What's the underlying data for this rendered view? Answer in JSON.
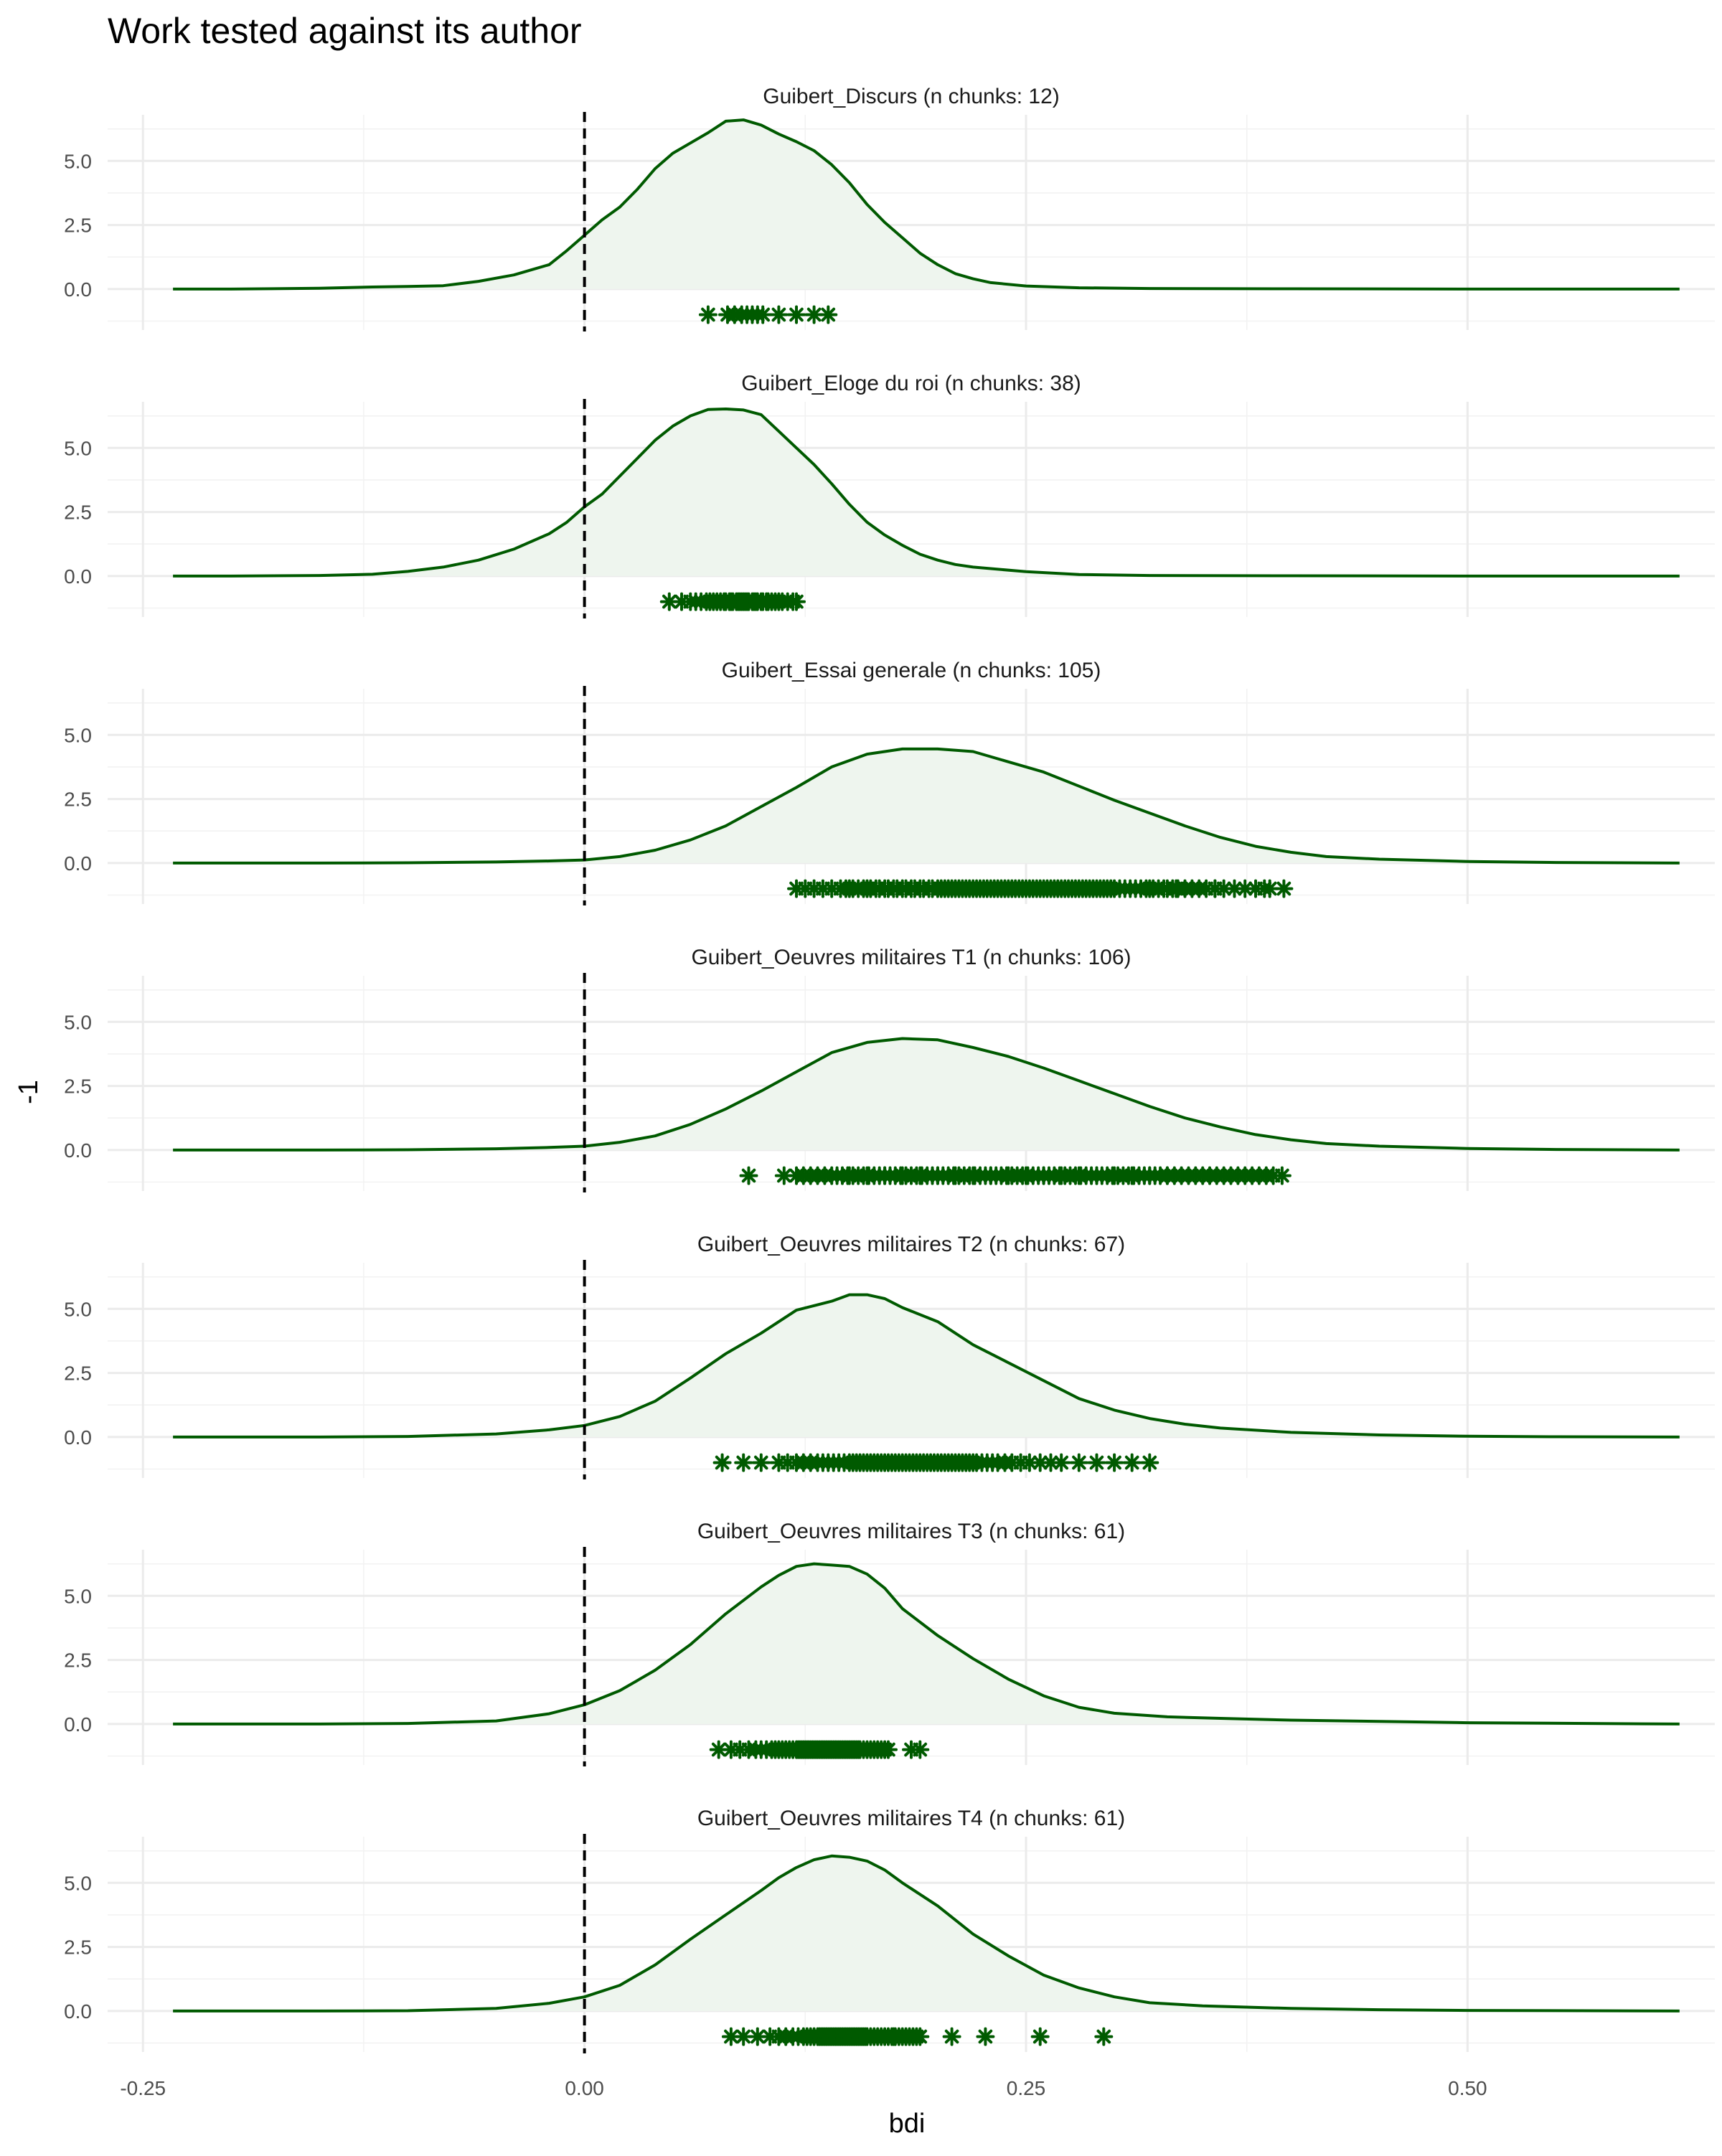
{
  "chart_data": {
    "type": "density",
    "title": "Work tested against its author",
    "xlabel": "bdi",
    "ylabel": "-1",
    "xlim": [
      -0.27,
      0.64
    ],
    "x_ticks": [
      -0.25,
      0.0,
      0.25,
      0.5
    ],
    "x_tick_labels": [
      "-0.25",
      "0.00",
      "0.25",
      "0.50"
    ],
    "ylim": [
      -1.6,
      6.8
    ],
    "y_ticks": [
      0.0,
      2.5,
      5.0
    ],
    "y_tick_labels": [
      "0.0",
      "2.5",
      "5.0"
    ],
    "reference_line": {
      "x": 0.0,
      "style": "dashed",
      "color": "#000000"
    },
    "grid": true,
    "legend": "none",
    "colors": {
      "line": "#005a00",
      "fill": "#eef5ee",
      "points": "#005a00",
      "grid": "#ebebeb"
    },
    "point_marker": "asterisk",
    "point_y": -1,
    "panels": [
      {
        "title": "Guibert_Discurs (n chunks: 12)",
        "density": {
          "x": [
            -0.233,
            -0.2,
            -0.15,
            -0.12,
            -0.1,
            -0.08,
            -0.06,
            -0.04,
            -0.02,
            -0.01,
            0.0,
            0.01,
            0.02,
            0.03,
            0.04,
            0.05,
            0.06,
            0.07,
            0.08,
            0.09,
            0.1,
            0.11,
            0.12,
            0.13,
            0.14,
            0.15,
            0.16,
            0.17,
            0.18,
            0.19,
            0.2,
            0.21,
            0.22,
            0.23,
            0.25,
            0.28,
            0.32,
            0.4,
            0.5,
            0.62
          ],
          "y": [
            0.0,
            0.0,
            0.03,
            0.08,
            0.1,
            0.13,
            0.3,
            0.55,
            0.95,
            1.5,
            2.1,
            2.7,
            3.2,
            3.9,
            4.7,
            5.3,
            5.7,
            6.1,
            6.55,
            6.6,
            6.4,
            6.05,
            5.75,
            5.4,
            4.85,
            4.15,
            3.3,
            2.6,
            2.0,
            1.4,
            0.95,
            0.6,
            0.4,
            0.25,
            0.12,
            0.05,
            0.02,
            0.01,
            0.0,
            0.0
          ]
        },
        "points": [
          0.07,
          0.081,
          0.085,
          0.089,
          0.092,
          0.095,
          0.098,
          0.101,
          0.11,
          0.12,
          0.13,
          0.138
        ]
      },
      {
        "title": "Guibert_Eloge du roi (n chunks: 38)",
        "density": {
          "x": [
            -0.233,
            -0.2,
            -0.15,
            -0.12,
            -0.1,
            -0.08,
            -0.06,
            -0.04,
            -0.02,
            -0.01,
            0.0,
            0.01,
            0.02,
            0.03,
            0.04,
            0.05,
            0.06,
            0.07,
            0.08,
            0.09,
            0.1,
            0.11,
            0.12,
            0.13,
            0.14,
            0.15,
            0.16,
            0.17,
            0.18,
            0.19,
            0.2,
            0.21,
            0.22,
            0.25,
            0.28,
            0.32,
            0.4,
            0.5,
            0.62
          ],
          "y": [
            0.0,
            0.0,
            0.02,
            0.07,
            0.18,
            0.35,
            0.62,
            1.05,
            1.65,
            2.1,
            2.7,
            3.2,
            3.9,
            4.6,
            5.3,
            5.85,
            6.25,
            6.5,
            6.52,
            6.48,
            6.3,
            5.65,
            5.0,
            4.35,
            3.6,
            2.8,
            2.1,
            1.6,
            1.2,
            0.85,
            0.62,
            0.45,
            0.35,
            0.17,
            0.06,
            0.02,
            0.01,
            0.0,
            0.0
          ]
        },
        "points": [
          0.048,
          0.055,
          0.06,
          0.063,
          0.066,
          0.069,
          0.071,
          0.073,
          0.075,
          0.077,
          0.079,
          0.08,
          0.082,
          0.083,
          0.084,
          0.086,
          0.087,
          0.088,
          0.089,
          0.09,
          0.091,
          0.092,
          0.093,
          0.095,
          0.096,
          0.097,
          0.098,
          0.1,
          0.101,
          0.103,
          0.104,
          0.106,
          0.108,
          0.11,
          0.112,
          0.115,
          0.118,
          0.12
        ]
      },
      {
        "title": "Guibert_Essai generale (n chunks: 105)",
        "density": {
          "x": [
            -0.233,
            -0.15,
            -0.1,
            -0.05,
            -0.02,
            0.0,
            0.02,
            0.04,
            0.06,
            0.08,
            0.1,
            0.12,
            0.14,
            0.16,
            0.18,
            0.2,
            0.22,
            0.24,
            0.26,
            0.28,
            0.3,
            0.32,
            0.34,
            0.36,
            0.38,
            0.4,
            0.42,
            0.45,
            0.5,
            0.55,
            0.62
          ],
          "y": [
            0.0,
            0.0,
            0.01,
            0.04,
            0.08,
            0.12,
            0.25,
            0.5,
            0.9,
            1.45,
            2.2,
            2.95,
            3.75,
            4.25,
            4.45,
            4.45,
            4.35,
            3.95,
            3.55,
            3.0,
            2.45,
            1.95,
            1.45,
            1.0,
            0.65,
            0.42,
            0.25,
            0.15,
            0.06,
            0.02,
            0.0
          ]
        },
        "points": [
          0.12,
          0.125,
          0.13,
          0.135,
          0.14,
          0.145,
          0.148,
          0.15,
          0.152,
          0.155,
          0.158,
          0.16,
          0.162,
          0.165,
          0.167,
          0.17,
          0.172,
          0.175,
          0.177,
          0.18,
          0.182,
          0.185,
          0.187,
          0.19,
          0.192,
          0.195,
          0.197,
          0.2,
          0.202,
          0.204,
          0.206,
          0.208,
          0.21,
          0.212,
          0.214,
          0.216,
          0.218,
          0.22,
          0.222,
          0.224,
          0.226,
          0.228,
          0.23,
          0.232,
          0.234,
          0.236,
          0.238,
          0.24,
          0.242,
          0.244,
          0.246,
          0.248,
          0.25,
          0.252,
          0.254,
          0.256,
          0.258,
          0.26,
          0.262,
          0.264,
          0.266,
          0.268,
          0.27,
          0.272,
          0.274,
          0.276,
          0.278,
          0.28,
          0.282,
          0.284,
          0.286,
          0.288,
          0.29,
          0.292,
          0.294,
          0.296,
          0.298,
          0.3,
          0.303,
          0.306,
          0.309,
          0.312,
          0.315,
          0.318,
          0.32,
          0.322,
          0.325,
          0.328,
          0.33,
          0.333,
          0.336,
          0.34,
          0.344,
          0.348,
          0.352,
          0.357,
          0.362,
          0.368,
          0.374,
          0.38,
          0.388,
          0.396,
          0.335,
          0.357,
          0.385
        ]
      },
      {
        "title": "Guibert_Oeuvres militaires T1 (n chunks: 106)",
        "density": {
          "x": [
            -0.233,
            -0.15,
            -0.1,
            -0.05,
            -0.02,
            0.0,
            0.02,
            0.04,
            0.06,
            0.08,
            0.1,
            0.12,
            0.14,
            0.16,
            0.18,
            0.2,
            0.22,
            0.24,
            0.26,
            0.28,
            0.3,
            0.32,
            0.34,
            0.36,
            0.38,
            0.4,
            0.42,
            0.45,
            0.5,
            0.55,
            0.62
          ],
          "y": [
            0.0,
            0.0,
            0.01,
            0.05,
            0.1,
            0.15,
            0.3,
            0.55,
            1.0,
            1.6,
            2.3,
            3.05,
            3.8,
            4.2,
            4.35,
            4.3,
            4.0,
            3.65,
            3.2,
            2.7,
            2.2,
            1.7,
            1.25,
            0.9,
            0.6,
            0.4,
            0.25,
            0.15,
            0.06,
            0.02,
            0.0
          ]
        },
        "points": [
          0.093,
          0.113,
          0.12,
          0.124,
          0.128,
          0.132,
          0.136,
          0.14,
          0.143,
          0.146,
          0.149,
          0.152,
          0.155,
          0.158,
          0.161,
          0.164,
          0.167,
          0.17,
          0.173,
          0.176,
          0.179,
          0.182,
          0.185,
          0.188,
          0.191,
          0.194,
          0.197,
          0.2,
          0.203,
          0.206,
          0.209,
          0.212,
          0.215,
          0.218,
          0.221,
          0.224,
          0.227,
          0.23,
          0.233,
          0.236,
          0.239,
          0.242,
          0.245,
          0.248,
          0.251,
          0.254,
          0.257,
          0.26,
          0.263,
          0.266,
          0.269,
          0.272,
          0.275,
          0.278,
          0.281,
          0.284,
          0.287,
          0.29,
          0.293,
          0.296,
          0.299,
          0.302,
          0.305,
          0.308,
          0.311,
          0.314,
          0.317,
          0.32,
          0.323,
          0.326,
          0.33,
          0.334,
          0.338,
          0.342,
          0.346,
          0.35,
          0.354,
          0.358,
          0.362,
          0.366,
          0.37,
          0.374,
          0.378,
          0.382,
          0.386,
          0.39,
          0.395,
          0.15,
          0.16,
          0.17,
          0.18,
          0.19,
          0.2,
          0.21,
          0.22,
          0.23,
          0.24,
          0.25,
          0.26,
          0.27,
          0.28,
          0.29,
          0.3,
          0.31,
          0.32,
          0.33
        ]
      },
      {
        "title": "Guibert_Oeuvres militaires T2 (n chunks: 67)",
        "density": {
          "x": [
            -0.233,
            -0.15,
            -0.1,
            -0.05,
            -0.02,
            0.0,
            0.02,
            0.04,
            0.06,
            0.08,
            0.1,
            0.12,
            0.14,
            0.15,
            0.16,
            0.17,
            0.18,
            0.2,
            0.22,
            0.24,
            0.26,
            0.28,
            0.3,
            0.32,
            0.34,
            0.36,
            0.4,
            0.45,
            0.5,
            0.55,
            0.62
          ],
          "y": [
            0.0,
            0.0,
            0.02,
            0.12,
            0.28,
            0.45,
            0.8,
            1.4,
            2.3,
            3.25,
            4.05,
            4.95,
            5.3,
            5.55,
            5.55,
            5.4,
            5.05,
            4.5,
            3.6,
            2.9,
            2.2,
            1.5,
            1.05,
            0.72,
            0.5,
            0.35,
            0.18,
            0.08,
            0.03,
            0.01,
            0.0
          ]
        },
        "points": [
          0.078,
          0.09,
          0.1,
          0.11,
          0.115,
          0.12,
          0.124,
          0.128,
          0.132,
          0.135,
          0.138,
          0.141,
          0.144,
          0.147,
          0.15,
          0.152,
          0.154,
          0.156,
          0.158,
          0.16,
          0.162,
          0.164,
          0.166,
          0.168,
          0.17,
          0.172,
          0.174,
          0.176,
          0.178,
          0.18,
          0.182,
          0.184,
          0.186,
          0.188,
          0.19,
          0.192,
          0.194,
          0.196,
          0.198,
          0.2,
          0.202,
          0.204,
          0.206,
          0.208,
          0.21,
          0.212,
          0.214,
          0.216,
          0.218,
          0.22,
          0.222,
          0.225,
          0.228,
          0.231,
          0.234,
          0.238,
          0.242,
          0.247,
          0.252,
          0.258,
          0.264,
          0.27,
          0.28,
          0.29,
          0.3,
          0.31,
          0.32
        ]
      },
      {
        "title": "Guibert_Oeuvres militaires T3 (n chunks: 61)",
        "density": {
          "x": [
            -0.233,
            -0.15,
            -0.1,
            -0.05,
            -0.02,
            0.0,
            0.02,
            0.04,
            0.06,
            0.08,
            0.1,
            0.11,
            0.12,
            0.13,
            0.14,
            0.15,
            0.16,
            0.17,
            0.18,
            0.2,
            0.22,
            0.24,
            0.26,
            0.28,
            0.3,
            0.33,
            0.36,
            0.4,
            0.45,
            0.5,
            0.62
          ],
          "y": [
            0.0,
            0.0,
            0.02,
            0.12,
            0.4,
            0.75,
            1.3,
            2.1,
            3.1,
            4.3,
            5.35,
            5.8,
            6.15,
            6.25,
            6.2,
            6.15,
            5.85,
            5.3,
            4.5,
            3.45,
            2.55,
            1.75,
            1.1,
            0.65,
            0.42,
            0.28,
            0.22,
            0.15,
            0.1,
            0.05,
            0.0
          ]
        },
        "points": [
          0.076,
          0.083,
          0.088,
          0.093,
          0.097,
          0.1,
          0.103,
          0.106,
          0.108,
          0.11,
          0.112,
          0.114,
          0.116,
          0.118,
          0.12,
          0.121,
          0.122,
          0.123,
          0.124,
          0.125,
          0.126,
          0.127,
          0.128,
          0.129,
          0.13,
          0.131,
          0.132,
          0.133,
          0.134,
          0.135,
          0.136,
          0.137,
          0.138,
          0.139,
          0.14,
          0.141,
          0.142,
          0.143,
          0.144,
          0.145,
          0.146,
          0.147,
          0.148,
          0.149,
          0.15,
          0.151,
          0.152,
          0.153,
          0.154,
          0.155,
          0.156,
          0.158,
          0.16,
          0.162,
          0.164,
          0.166,
          0.168,
          0.17,
          0.172,
          0.185,
          0.19
        ]
      },
      {
        "title": "Guibert_Oeuvres militaires T4 (n chunks: 61)",
        "density": {
          "x": [
            -0.233,
            -0.15,
            -0.1,
            -0.05,
            -0.02,
            0.0,
            0.02,
            0.04,
            0.06,
            0.08,
            0.1,
            0.11,
            0.12,
            0.13,
            0.14,
            0.15,
            0.16,
            0.17,
            0.18,
            0.2,
            0.22,
            0.24,
            0.26,
            0.28,
            0.3,
            0.32,
            0.35,
            0.4,
            0.45,
            0.5,
            0.62
          ],
          "y": [
            0.0,
            0.0,
            0.01,
            0.1,
            0.3,
            0.55,
            1.0,
            1.8,
            2.8,
            3.75,
            4.7,
            5.2,
            5.6,
            5.9,
            6.05,
            6.0,
            5.85,
            5.5,
            5.0,
            4.1,
            3.0,
            2.15,
            1.4,
            0.9,
            0.55,
            0.32,
            0.2,
            0.1,
            0.05,
            0.02,
            0.0
          ]
        },
        "points": [
          0.083,
          0.09,
          0.098,
          0.105,
          0.11,
          0.114,
          0.118,
          0.121,
          0.124,
          0.126,
          0.128,
          0.13,
          0.132,
          0.133,
          0.134,
          0.135,
          0.136,
          0.137,
          0.138,
          0.139,
          0.14,
          0.141,
          0.142,
          0.143,
          0.144,
          0.145,
          0.146,
          0.147,
          0.148,
          0.149,
          0.15,
          0.151,
          0.152,
          0.153,
          0.154,
          0.155,
          0.156,
          0.157,
          0.158,
          0.159,
          0.16,
          0.162,
          0.164,
          0.166,
          0.168,
          0.17,
          0.172,
          0.174,
          0.176,
          0.178,
          0.18,
          0.182,
          0.184,
          0.186,
          0.188,
          0.19,
          0.208,
          0.227,
          0.258,
          0.294,
          0.175
        ]
      }
    ]
  }
}
